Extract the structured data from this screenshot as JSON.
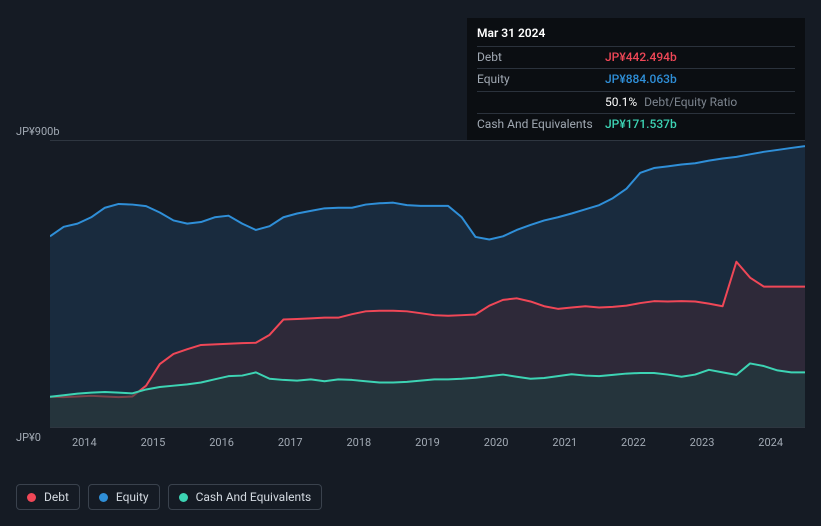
{
  "tooltip": {
    "date": "Mar 31 2024",
    "rows": [
      {
        "label": "Debt",
        "value": "JP¥442.494b",
        "cls": "debt"
      },
      {
        "label": "Equity",
        "value": "JP¥884.063b",
        "cls": "equity"
      },
      {
        "label": "",
        "ratio": "50.1%",
        "ratio_label": "Debt/Equity Ratio"
      },
      {
        "label": "Cash And Equivalents",
        "value": "JP¥171.537b",
        "cls": "cash"
      }
    ]
  },
  "chart": {
    "type": "area",
    "y_max_label": "JP¥900b",
    "y_min_label": "JP¥0",
    "y_max": 900,
    "y_min": 0,
    "background_color": "#151b24",
    "grid_color": "#2e3640",
    "x_labels": [
      "2014",
      "2015",
      "2016",
      "2017",
      "2018",
      "2019",
      "2020",
      "2021",
      "2022",
      "2023",
      "2024"
    ],
    "series": [
      {
        "name": "Equity",
        "stroke": "#2f8fd8",
        "fill": "#1d3953",
        "fill_opacity": 0.55,
        "values": [
          600,
          630,
          640,
          660,
          690,
          702,
          700,
          695,
          675,
          650,
          640,
          645,
          660,
          665,
          640,
          620,
          632,
          660,
          672,
          680,
          688,
          690,
          690,
          700,
          704,
          706,
          698,
          696,
          696,
          696,
          660,
          598,
          590,
          600,
          620,
          636,
          650,
          660,
          672,
          685,
          698,
          720,
          750,
          800,
          815,
          820,
          826,
          830,
          838,
          845,
          850,
          858,
          866,
          872,
          878,
          884
        ]
      },
      {
        "name": "Debt",
        "stroke": "#f04757",
        "fill": "#4a2832",
        "fill_opacity": 0.45,
        "values": [
          95,
          94,
          96,
          98,
          96,
          94,
          96,
          130,
          198,
          230,
          245,
          258,
          260,
          262,
          264,
          265,
          290,
          338,
          340,
          342,
          344,
          344,
          355,
          364,
          366,
          366,
          364,
          358,
          352,
          350,
          352,
          354,
          382,
          400,
          405,
          395,
          380,
          372,
          376,
          380,
          376,
          378,
          382,
          390,
          396,
          395,
          396,
          395,
          388,
          380,
          520,
          470,
          442,
          442,
          442,
          442
        ]
      },
      {
        "name": "Cash And Equivalents",
        "stroke": "#3dd4b4",
        "fill": "#1f3e3f",
        "fill_opacity": 0.55,
        "values": [
          95,
          100,
          105,
          108,
          110,
          108,
          106,
          118,
          126,
          130,
          134,
          140,
          150,
          160,
          162,
          172,
          152,
          148,
          146,
          150,
          144,
          150,
          148,
          144,
          140,
          140,
          142,
          146,
          150,
          150,
          152,
          155,
          160,
          165,
          158,
          152,
          154,
          160,
          166,
          162,
          160,
          164,
          168,
          170,
          170,
          165,
          158,
          165,
          180,
          172,
          164,
          200,
          192,
          178,
          172,
          172
        ]
      }
    ]
  },
  "legend": [
    {
      "label": "Debt",
      "color": "#f04757"
    },
    {
      "label": "Equity",
      "color": "#2f8fd8"
    },
    {
      "label": "Cash And Equivalents",
      "color": "#3dd4b4"
    }
  ]
}
